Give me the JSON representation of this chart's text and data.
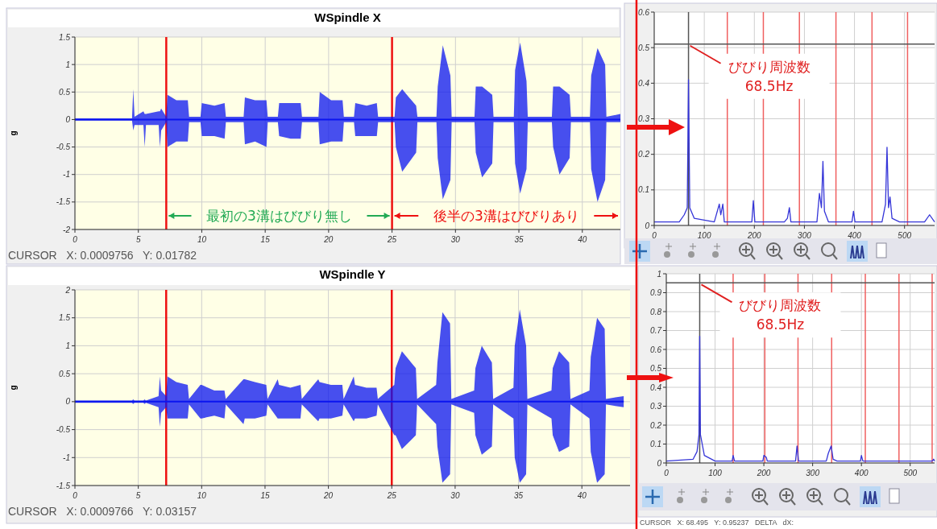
{
  "chart_data": [
    {
      "type": "line",
      "title": "WSpindle X",
      "ylabel": "g",
      "xlim": [
        0,
        43
      ],
      "ylim": [
        -2,
        1.5
      ],
      "xticks": [
        0,
        5,
        10,
        15,
        20,
        25,
        30,
        35,
        40
      ],
      "yticks": [
        -2,
        -1.5,
        -1,
        -0.5,
        0,
        0.5,
        1,
        1.5
      ],
      "grid": true,
      "series": [
        {
          "color": "#0a14f0",
          "x": [
            0,
            4.5,
            4.6,
            4.7,
            5.4,
            5.5,
            5.6,
            6.6,
            6.7,
            6.8,
            7.2,
            7.3,
            8.0,
            8.9,
            9.0,
            9.9,
            10.0,
            11.0,
            11.8,
            11.9,
            13.3,
            13.4,
            14.2,
            15.1,
            15.2,
            16.0,
            16.1,
            17.0,
            17.8,
            17.9,
            19.2,
            19.3,
            20.2,
            21.1,
            21.2,
            22.0,
            22.1,
            23.0,
            23.8,
            23.9,
            25.2,
            25.3,
            25.8,
            26.9,
            27.0,
            28.5,
            28.6,
            29.0,
            29.6,
            29.7,
            31.5,
            31.6,
            32.1,
            32.9,
            33.0,
            34.6,
            34.7,
            35.1,
            35.6,
            35.7,
            37.6,
            37.7,
            38.2,
            39.0,
            39.1,
            40.6,
            40.7,
            41.2,
            41.8,
            41.9,
            43.0
          ],
          "values": [
            0,
            0,
            0,
            0,
            0,
            0,
            0,
            0,
            0,
            0,
            0,
            0,
            0,
            0,
            0,
            0,
            0,
            0,
            0,
            0,
            0,
            0,
            0,
            0,
            0,
            0,
            0,
            0,
            0,
            0,
            0,
            0,
            0,
            0,
            0,
            0,
            0,
            0,
            0,
            0,
            0,
            0,
            0,
            0,
            0,
            0,
            0,
            0,
            0,
            0,
            0,
            0,
            0,
            0,
            0,
            0,
            0,
            0,
            0,
            0,
            0,
            0,
            0,
            0,
            0,
            0,
            0,
            0,
            0,
            0,
            0
          ],
          "upper": [
            0.02,
            0.02,
            0.55,
            0.05,
            0.15,
            0.1,
            0.1,
            0.15,
            0.15,
            0.2,
            0.05,
            0.45,
            0.35,
            0.35,
            0.05,
            0.05,
            0.3,
            0.25,
            0.3,
            0.05,
            0.05,
            0.4,
            0.35,
            0.35,
            0.05,
            0.05,
            0.3,
            0.3,
            0.3,
            0.05,
            0.05,
            0.5,
            0.35,
            0.35,
            0.05,
            0.05,
            0.3,
            0.25,
            0.3,
            0.05,
            0.05,
            0.4,
            0.55,
            0.25,
            0.05,
            0.05,
            0.6,
            1.35,
            0.8,
            0.05,
            0.05,
            0.6,
            0.6,
            0.45,
            0.05,
            0.05,
            0.9,
            1.4,
            0.7,
            0.05,
            0.05,
            0.6,
            0.6,
            0.45,
            0.05,
            0.05,
            0.8,
            1.3,
            1.0,
            0.05,
            0.1
          ],
          "lower": [
            -0.02,
            -0.02,
            -0.2,
            -0.1,
            -0.1,
            -0.5,
            -0.1,
            -0.1,
            -0.5,
            -0.2,
            -0.05,
            -0.5,
            -0.4,
            -0.4,
            -0.05,
            -0.05,
            -0.3,
            -0.3,
            -0.35,
            -0.05,
            -0.05,
            -0.45,
            -0.4,
            -0.5,
            -0.05,
            -0.05,
            -0.3,
            -0.35,
            -0.35,
            -0.05,
            -0.05,
            -0.45,
            -0.4,
            -0.4,
            -0.05,
            -0.05,
            -0.3,
            -0.3,
            -0.3,
            -0.05,
            -0.05,
            -0.5,
            -0.95,
            -0.6,
            -0.05,
            -0.05,
            -0.7,
            -1.45,
            -1.1,
            -0.05,
            -0.05,
            -0.6,
            -1.05,
            -0.8,
            -0.05,
            -0.05,
            -0.8,
            -1.35,
            -0.9,
            -0.05,
            -0.05,
            -0.5,
            -1.0,
            -0.7,
            -0.05,
            -0.05,
            -0.9,
            -1.5,
            -1.1,
            -0.05,
            -0.05
          ]
        }
      ],
      "ref_lines": [
        {
          "axis": "x",
          "value": 7.2,
          "color": "#ee1111"
        },
        {
          "axis": "x",
          "value": 25,
          "color": "#ee1111"
        }
      ],
      "annotations": [
        {
          "text": "最初の3溝はびびり無し",
          "x": 7.2,
          "y": -1.75
        },
        {
          "text": "後半の3溝はびびりあり",
          "x": 25,
          "y": -1.75
        },
        "CURSOR   X: 0.0009756   Y: 0.01782"
      ]
    },
    {
      "type": "line",
      "xlim": [
        0,
        560
      ],
      "ylim": [
        0,
        0.6
      ],
      "xticks": [
        0,
        100,
        200,
        300,
        400,
        500
      ],
      "yticks": [
        0,
        0.1,
        0.2,
        0.3,
        0.4,
        0.5,
        0.6
      ],
      "grid": true,
      "series": [
        {
          "color": "#3535d8",
          "x": [
            0,
            50,
            60,
            66,
            68.5,
            71,
            80,
            120,
            130,
            133,
            137,
            140,
            195,
            198,
            201,
            260,
            266,
            270,
            273,
            325,
            330,
            334,
            337,
            340,
            348,
            395,
            398,
            401,
            455,
            462,
            465,
            468,
            471,
            475,
            490,
            540,
            550,
            560
          ],
          "values": [
            0.01,
            0.01,
            0.03,
            0.05,
            0.41,
            0.05,
            0.02,
            0.01,
            0.06,
            0.03,
            0.06,
            0.01,
            0.01,
            0.07,
            0.01,
            0.01,
            0.02,
            0.05,
            0.01,
            0.01,
            0.09,
            0.05,
            0.18,
            0.04,
            0.01,
            0.01,
            0.04,
            0.01,
            0.01,
            0.06,
            0.22,
            0.05,
            0.08,
            0.02,
            0.01,
            0.01,
            0.03,
            0.01
          ]
        }
      ],
      "ref_lines": [
        {
          "axis": "x",
          "value": 146,
          "color": "#f06060"
        },
        {
          "axis": "x",
          "value": 218,
          "color": "#f06060"
        },
        {
          "axis": "x",
          "value": 290,
          "color": "#f06060"
        },
        {
          "axis": "x",
          "value": 363,
          "color": "#f06060"
        },
        {
          "axis": "x",
          "value": 435,
          "color": "#f06060"
        },
        {
          "axis": "x",
          "value": 506,
          "color": "#f06060"
        },
        {
          "axis": "x",
          "value": 68.5,
          "color": "#555555"
        },
        {
          "axis": "y",
          "value": 0.51,
          "color": "#555555"
        }
      ],
      "annotations": [
        {
          "text": "びびり周波数\n68.5Hz",
          "x": 68.5,
          "y": 0.51
        }
      ]
    },
    {
      "type": "line",
      "title": "WSpindle Y",
      "ylabel": "g",
      "xlim": [
        0,
        43.8
      ],
      "ylim": [
        -1.5,
        2
      ],
      "xticks": [
        0,
        5,
        10,
        15,
        20,
        25,
        30,
        35,
        40
      ],
      "yticks": [
        -1.5,
        -1,
        -0.5,
        0,
        0.5,
        1,
        1.5,
        2
      ],
      "grid": true,
      "series": [
        {
          "color": "#0a14f0",
          "x": [
            0,
            4.5,
            4.6,
            4.7,
            5.4,
            5.5,
            5.6,
            6.6,
            6.7,
            6.8,
            7.2,
            7.3,
            8.0,
            8.9,
            9.0,
            9.9,
            10.0,
            11.0,
            11.8,
            11.9,
            13.3,
            13.4,
            14.2,
            15.1,
            15.2,
            16.0,
            16.1,
            17.0,
            17.8,
            17.9,
            19.2,
            19.3,
            20.2,
            21.1,
            21.2,
            22.0,
            22.1,
            23.0,
            23.8,
            23.9,
            25.2,
            25.3,
            25.8,
            26.9,
            27.0,
            28.5,
            28.6,
            29.0,
            29.6,
            29.7,
            31.5,
            31.6,
            32.1,
            32.9,
            33.0,
            34.6,
            34.7,
            35.1,
            35.6,
            35.7,
            37.6,
            37.7,
            38.2,
            39.0,
            39.1,
            40.6,
            40.7,
            41.2,
            41.8,
            41.9,
            43.3
          ],
          "values": [
            0,
            0,
            0,
            0,
            0,
            0,
            0,
            0,
            0,
            0,
            0,
            0,
            0,
            0,
            0,
            0,
            0,
            0,
            0,
            0,
            0,
            0,
            0,
            0,
            0,
            0,
            0,
            0,
            0,
            0,
            0,
            0,
            0,
            0,
            0,
            0,
            0,
            0,
            0,
            0,
            0,
            0,
            0,
            0,
            0,
            0,
            0,
            0,
            0,
            0,
            0,
            0,
            0,
            0,
            0,
            0,
            0,
            0,
            0,
            0,
            0,
            0,
            0,
            0,
            0,
            0,
            0,
            0,
            0,
            0,
            0
          ],
          "upper": [
            0.02,
            0.02,
            0.04,
            0.02,
            0.02,
            0.04,
            0.02,
            0.1,
            0.45,
            0.2,
            0.1,
            0.45,
            0.35,
            0.3,
            0.05,
            0.3,
            0.3,
            0.2,
            0.2,
            0.05,
            0.4,
            0.4,
            0.35,
            0.3,
            0.05,
            0.4,
            0.3,
            0.25,
            0.3,
            0.05,
            0.4,
            0.35,
            0.3,
            0.3,
            0.05,
            0.45,
            0.3,
            0.25,
            0.25,
            0.05,
            0.3,
            0.6,
            0.9,
            0.6,
            0.05,
            0.3,
            0.7,
            1.6,
            1.4,
            0.05,
            0.2,
            0.6,
            1.0,
            0.7,
            0.05,
            0.25,
            1.0,
            1.65,
            1.0,
            0.05,
            0.2,
            0.6,
            0.9,
            0.7,
            0.05,
            0.2,
            0.8,
            1.5,
            1.3,
            0.05,
            0.1
          ],
          "lower": [
            -0.02,
            -0.02,
            -0.04,
            -0.02,
            -0.02,
            -0.04,
            -0.02,
            -0.1,
            -0.45,
            -0.2,
            -0.1,
            -0.3,
            -0.3,
            -0.3,
            -0.05,
            -0.3,
            -0.3,
            -0.25,
            -0.3,
            -0.05,
            -0.4,
            -0.3,
            -0.3,
            -0.25,
            -0.05,
            -0.3,
            -0.3,
            -0.3,
            -0.3,
            -0.05,
            -0.35,
            -0.3,
            -0.3,
            -0.25,
            -0.05,
            -0.35,
            -0.3,
            -0.3,
            -0.25,
            -0.05,
            -0.6,
            -0.6,
            -0.85,
            -0.6,
            -0.05,
            -0.4,
            -0.8,
            -1.45,
            -1.3,
            -0.05,
            -0.2,
            -0.6,
            -0.95,
            -0.8,
            -0.05,
            -0.3,
            -1.0,
            -1.45,
            -1.3,
            -0.05,
            -0.3,
            -0.6,
            -0.9,
            -0.8,
            -0.05,
            -0.3,
            -0.9,
            -1.45,
            -1.3,
            -0.05,
            -0.1
          ]
        }
      ],
      "ref_lines": [
        {
          "axis": "x",
          "value": 7.2,
          "color": "#ee1111"
        },
        {
          "axis": "x",
          "value": 25,
          "color": "#ee1111"
        }
      ],
      "annotations": [
        "CURSOR   X: 0.0009766   Y: 0.03157"
      ]
    },
    {
      "type": "line",
      "xlim": [
        0,
        550
      ],
      "ylim": [
        0,
        1
      ],
      "xticks": [
        0,
        100,
        200,
        300,
        400,
        500
      ],
      "yticks": [
        0,
        0.1,
        0.2,
        0.3,
        0.4,
        0.5,
        0.6,
        0.7,
        0.8,
        0.9,
        1
      ],
      "grid": true,
      "series": [
        {
          "color": "#3535d8",
          "x": [
            0,
            55,
            63,
            67,
            68.5,
            70,
            78,
            100,
            135,
            137,
            140,
            198,
            200,
            205,
            207,
            265,
            268,
            271,
            328,
            332,
            338,
            342,
            350,
            398,
            400,
            403,
            470,
            545,
            548,
            550
          ],
          "values": [
            0.01,
            0.02,
            0.06,
            0.15,
            0.67,
            0.15,
            0.04,
            0.01,
            0.01,
            0.04,
            0.01,
            0.01,
            0.04,
            0.03,
            0.01,
            0.01,
            0.09,
            0.01,
            0.01,
            0.05,
            0.09,
            0.02,
            0.01,
            0.01,
            0.04,
            0.01,
            0.01,
            0.01,
            0.02,
            0.01
          ]
        }
      ],
      "ref_lines": [
        {
          "axis": "x",
          "value": 137,
          "color": "#f06060"
        },
        {
          "axis": "x",
          "value": 202,
          "color": "#f06060"
        },
        {
          "axis": "x",
          "value": 270,
          "color": "#f06060"
        },
        {
          "axis": "x",
          "value": 339,
          "color": "#f06060"
        },
        {
          "axis": "x",
          "value": 408,
          "color": "#f06060"
        },
        {
          "axis": "x",
          "value": 477,
          "color": "#f06060"
        },
        {
          "axis": "x",
          "value": 545,
          "color": "#f06060"
        },
        {
          "axis": "x",
          "value": 68.5,
          "color": "#555555"
        },
        {
          "axis": "y",
          "value": 0.952,
          "color": "#555555"
        }
      ],
      "annotations": [
        {
          "text": "びびり周波数\n68.5Hz",
          "x": 68.5,
          "y": 0.952
        },
        "CURSOR   X: 68.495   Y: 0.95237   DELTA   dX:"
      ]
    }
  ]
}
